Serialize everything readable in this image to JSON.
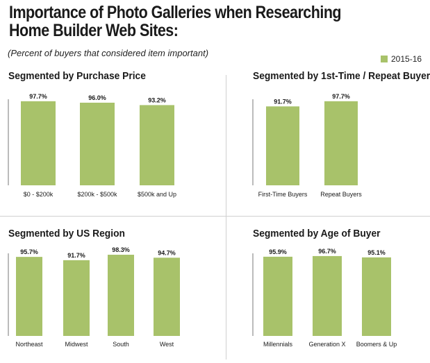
{
  "title_line1": "Importance of Photo Galleries when Researching",
  "title_line2": "Home Builder Web Sites:",
  "subtitle": "(Percent of buyers that considered item important)",
  "legend": {
    "label": "2015-16",
    "color": "#a8c26a"
  },
  "chart_data": [
    {
      "type": "bar",
      "title": "Segmented by Purchase Price",
      "categories": [
        "$0 - $200k",
        "$200k - $500k",
        "$500k and Up"
      ],
      "values": [
        97.7,
        96.0,
        93.2
      ],
      "labels": [
        "97.7%",
        "96.0%",
        "93.2%"
      ],
      "series": [
        {
          "name": "2015-16",
          "values": [
            97.7,
            96.0,
            93.2
          ]
        }
      ],
      "ylim": [
        0,
        100
      ]
    },
    {
      "type": "bar",
      "title": "Segmented by 1st-Time / Repeat Buyer",
      "categories": [
        "First-Time Buyers",
        "Repeat Buyers"
      ],
      "values": [
        91.7,
        97.7
      ],
      "labels": [
        "91.7%",
        "97.7%"
      ],
      "series": [
        {
          "name": "2015-16",
          "values": [
            91.7,
            97.7
          ]
        }
      ],
      "ylim": [
        0,
        100
      ]
    },
    {
      "type": "bar",
      "title": "Segmented by US Region",
      "categories": [
        "Northeast",
        "Midwest",
        "South",
        "West"
      ],
      "values": [
        95.7,
        91.7,
        98.3,
        94.7
      ],
      "labels": [
        "95.7%",
        "91.7%",
        "98.3%",
        "94.7%"
      ],
      "series": [
        {
          "name": "2015-16",
          "values": [
            95.7,
            91.7,
            98.3,
            94.7
          ]
        }
      ],
      "ylim": [
        0,
        100
      ]
    },
    {
      "type": "bar",
      "title": "Segmented by Age of Buyer",
      "categories": [
        "Millennials",
        "Generation X",
        "Boomers & Up"
      ],
      "values": [
        95.9,
        96.7,
        95.1
      ],
      "labels": [
        "95.9%",
        "96.7%",
        "95.1%"
      ],
      "series": [
        {
          "name": "2015-16",
          "values": [
            95.9,
            96.7,
            95.1
          ]
        }
      ],
      "ylim": [
        0,
        100
      ]
    }
  ]
}
